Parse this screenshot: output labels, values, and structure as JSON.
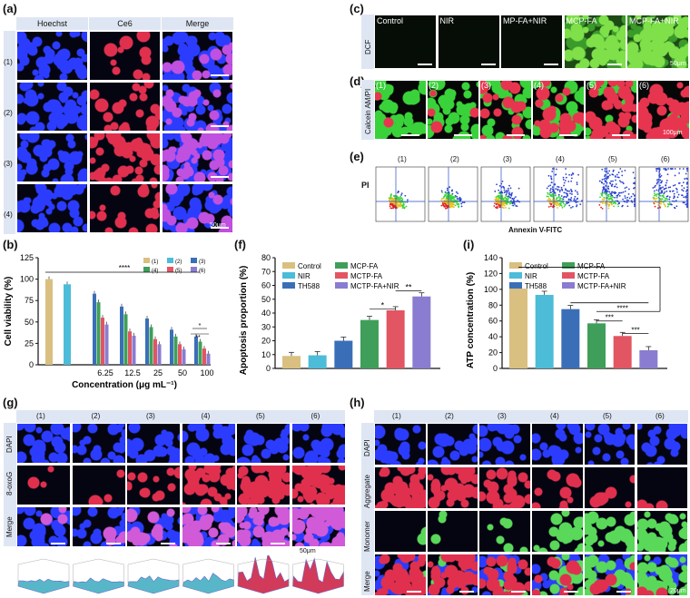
{
  "panels": {
    "a": "(a)",
    "b": "(b)",
    "c": "(c)",
    "d": "(d)",
    "e": "(e)",
    "f": "(f)",
    "g": "(g)",
    "h": "(h)",
    "i": "(i)"
  },
  "panel_a": {
    "cols": [
      "Hoechst",
      "Ce6",
      "Merge"
    ],
    "rows": [
      "(1)",
      "(2)",
      "(3)",
      "(4)"
    ],
    "scale": "50μm"
  },
  "panel_c": {
    "row_label": "DCF",
    "tiles": [
      "Control",
      "NIR",
      "MP-FA+NIR",
      "MCP-FA",
      "MCP-FA+NIR"
    ],
    "scale": "50μm"
  },
  "panel_d": {
    "row_label": "Calcein AM/PI",
    "tiles": [
      "(1)",
      "(2)",
      "(3)",
      "(4)",
      "(5)",
      "(6)"
    ],
    "scale": "100μm"
  },
  "panel_e": {
    "cols": [
      "(1)",
      "(2)",
      "(3)",
      "(4)",
      "(5)",
      "(6)"
    ],
    "ylabel": "PI",
    "xlabel": "Annexin V-FITC"
  },
  "panel_g": {
    "cols": [
      "(1)",
      "(2)",
      "(3)",
      "(4)",
      "(5)",
      "(6)"
    ],
    "rows": [
      "DAPI",
      "8-oxoG",
      "Merge"
    ],
    "scale": "50μm"
  },
  "panel_h": {
    "cols": [
      "(1)",
      "(2)",
      "(3)",
      "(4)",
      "(5)",
      "(6)"
    ],
    "rows": [
      "DAPI",
      "Aggregate",
      "Monomer",
      "Merge"
    ],
    "scale": "20μm"
  },
  "colors": {
    "blue": "#1a2ad8",
    "red": "#d42a4a",
    "green": "#33c82f",
    "header": "#dfe6f3"
  },
  "chart_data": [
    {
      "id": "b",
      "type": "bar",
      "ylabel": "Cell viability (%)",
      "xlabel": "Concentration (μg mL⁻¹)",
      "ylim": [
        0,
        125
      ],
      "yticks": [
        "0",
        "25",
        "50",
        "75",
        "100",
        "125"
      ],
      "categories": [
        "",
        "6.25",
        "12.5",
        "25",
        "50",
        "100"
      ],
      "legend": [
        "(1)",
        "(2)",
        "(3)",
        "(4)",
        "(5)",
        "(6)"
      ],
      "series_colors": [
        "#d9bf80",
        "#4cbcd8",
        "#3a6fb8",
        "#3f9f5a",
        "#e25563",
        "#8a7cd0"
      ],
      "series": [
        {
          "name": "(1)",
          "values": [
            100,
            null,
            null,
            null,
            null,
            null
          ]
        },
        {
          "name": "(2)",
          "values": [
            94,
            null,
            null,
            null,
            null,
            null
          ]
        },
        {
          "name": "(3)",
          "values": [
            null,
            83,
            68,
            54,
            41,
            33
          ]
        },
        {
          "name": "(4)",
          "values": [
            null,
            73,
            59,
            44,
            33,
            27
          ]
        },
        {
          "name": "(5)",
          "values": [
            null,
            55,
            39,
            30,
            24,
            19
          ]
        },
        {
          "name": "(6)",
          "values": [
            null,
            47,
            34,
            24,
            18,
            13
          ]
        }
      ],
      "annotations": [
        "****",
        "*",
        "**"
      ]
    },
    {
      "id": "f",
      "type": "bar",
      "ylabel": "Apoptosis proportion (%)",
      "ylim": [
        0,
        80
      ],
      "yticks": [
        "0",
        "10",
        "20",
        "30",
        "40",
        "50",
        "60",
        "70",
        "80"
      ],
      "categories": [
        "Control",
        "NIR",
        "TH588",
        "MCP-FA",
        "MCTP-FA",
        "MCTP-FA+NIR"
      ],
      "values": [
        9,
        9.5,
        20,
        35,
        42,
        52
      ],
      "colors": [
        "#d9bf80",
        "#4cbcd8",
        "#3a6fb8",
        "#3f9f5a",
        "#e25563",
        "#8a7cd0"
      ],
      "annotations": [
        "*",
        "**"
      ]
    },
    {
      "id": "i",
      "type": "bar",
      "ylabel": "ATP concentration (%)",
      "ylim": [
        0,
        140
      ],
      "yticks": [
        "0",
        "20",
        "40",
        "60",
        "80",
        "100",
        "120",
        "140"
      ],
      "categories": [
        "Control",
        "NIR",
        "TH588",
        "MCP-FA",
        "MCTP-FA",
        "MCTP-FA+NIR"
      ],
      "values": [
        101,
        93,
        75,
        57,
        41,
        23
      ],
      "colors": [
        "#d9bf80",
        "#4cbcd8",
        "#3a6fb8",
        "#3f9f5a",
        "#e25563",
        "#8a7cd0"
      ],
      "annotations": [
        "****",
        "***",
        "***"
      ]
    }
  ]
}
